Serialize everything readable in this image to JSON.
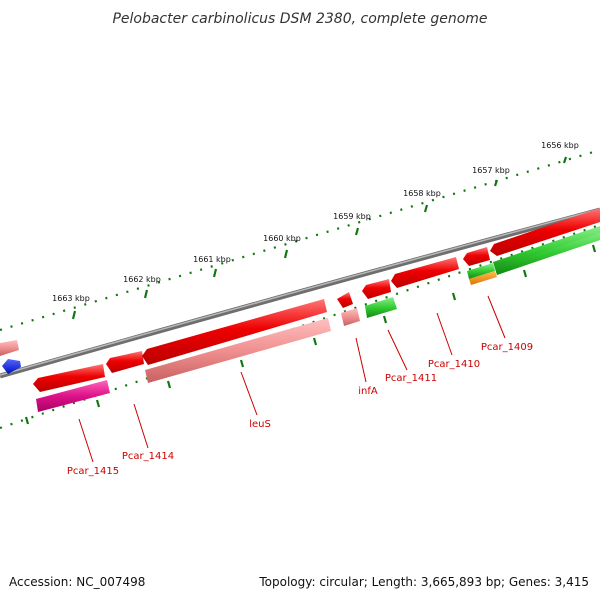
{
  "title": "Pelobacter carbinolicus DSM 2380, complete genome",
  "footer": {
    "accession": "Accession: NC_007498",
    "summary": "Topology: circular; Length: 3,665,893 bp; Genes: 3,415"
  },
  "scale_ticks": [
    {
      "label": "1656 kbp"
    },
    {
      "label": "1657 kbp"
    },
    {
      "label": "1658 kbp"
    },
    {
      "label": "1659 kbp"
    },
    {
      "label": "1660 kbp"
    },
    {
      "label": "1661 kbp"
    },
    {
      "label": "1662 kbp"
    },
    {
      "label": "1663 kbp"
    }
  ],
  "gene_labels": [
    {
      "name": "Pcar_1415"
    },
    {
      "name": "Pcar_1414"
    },
    {
      "name": "leuS"
    },
    {
      "name": "infA"
    },
    {
      "name": "Pcar_1411"
    },
    {
      "name": "Pcar_1410"
    },
    {
      "name": "Pcar_1409"
    }
  ],
  "colors": {
    "cds_red": "#ee1111",
    "cds_pink": "#f08888",
    "cds_magenta": "#dd1188",
    "cds_green": "#33cc33",
    "cds_orange": "#ee8800",
    "cds_blue": "#1122dd",
    "backbone": "#888888",
    "tick_green": "#117711",
    "label_red": "#cc0000"
  }
}
